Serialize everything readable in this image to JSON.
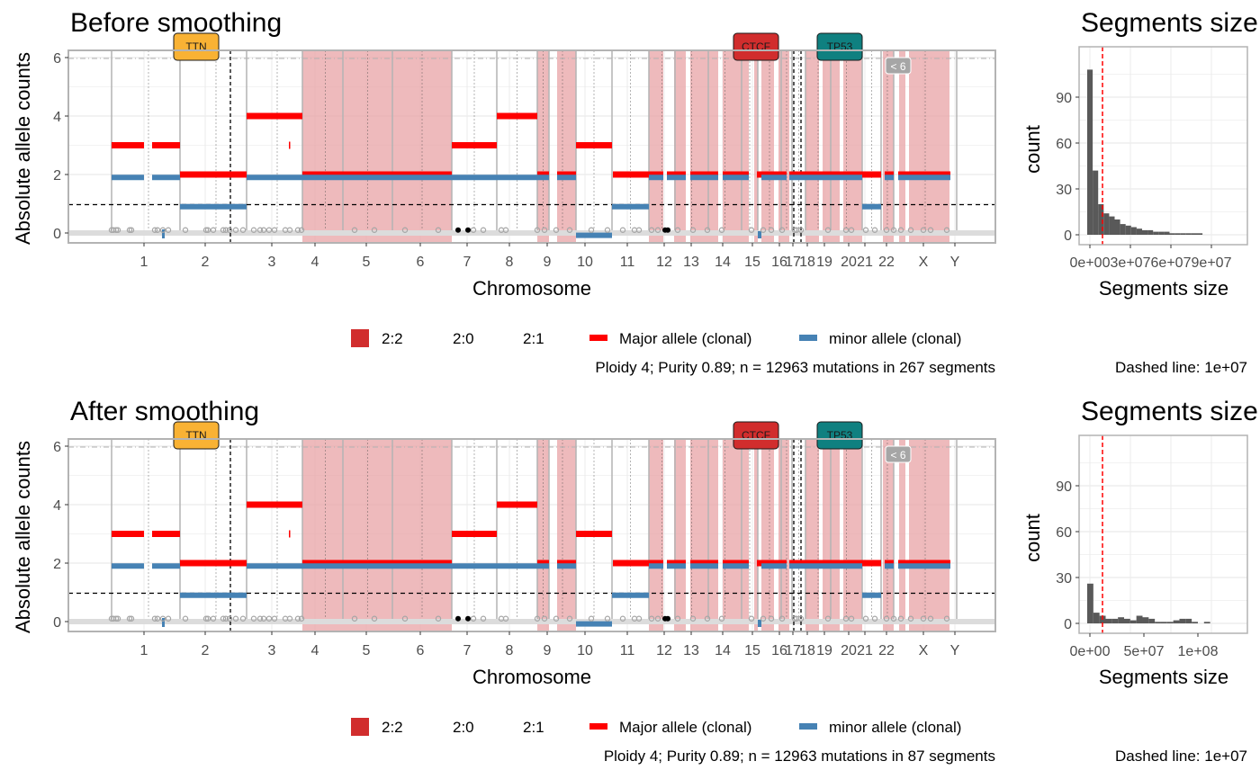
{
  "colors": {
    "major": "#ff0000",
    "minor": "#4682b4",
    "shade_2_2": "#e8a3a6",
    "legend_2_2": "#d12d2d",
    "ttn": "#f9b234",
    "ctcf": "#d12d2d",
    "tp53": "#0f8080",
    "hist_bar": "#595959",
    "hist_line": "#ff0000"
  },
  "legend": {
    "item_2_2": "2:2",
    "item_2_0": "2:0",
    "item_2_1": "2:1",
    "major": "Major allele (clonal)",
    "minor": "minor allele (clonal)"
  },
  "shared": {
    "ylabel": "Absolute allele counts",
    "xlabel": "Chromosome",
    "y_ticks": [
      "0",
      "2",
      "4",
      "6"
    ],
    "chromosomes": [
      "1",
      "2",
      "3",
      "4",
      "5",
      "6",
      "7",
      "8",
      "9",
      "10",
      "11",
      "12",
      "13",
      "14",
      "15",
      "16",
      "17",
      "18",
      "19",
      "20",
      "21",
      "22",
      "X",
      "Y"
    ],
    "genes": [
      "TTN",
      "CTCF",
      "TP53"
    ],
    "badge": "< 6",
    "hist_title": "Segments size",
    "hist_xlabel": "Segments size",
    "hist_ylabel": "count",
    "hist_y_ticks": [
      "0",
      "30",
      "60",
      "90"
    ],
    "dashed_caption": "Dashed line: 1e+07"
  },
  "panels": [
    {
      "title": "Before smoothing",
      "caption": "Ploidy 4; Purity  0.89; n = 12963 mutations in 267 segments",
      "hist_x_ticks": [
        "0e+00",
        "3e+07",
        "6e+07",
        "9e+07"
      ],
      "hist_counts": [
        108,
        42,
        20,
        14,
        12,
        10,
        7,
        6,
        5,
        4,
        3,
        3,
        2,
        2,
        2,
        1,
        1,
        1,
        1,
        1,
        1
      ]
    },
    {
      "title": "After smoothing",
      "caption": "Ploidy 4; Purity  0.89; n = 12963 mutations in 87 segments",
      "hist_x_ticks": [
        "0e+00",
        "5e+07",
        "1e+08"
      ],
      "hist_counts": [
        26,
        7,
        5,
        3,
        3,
        4,
        3,
        2,
        5,
        4,
        3,
        1,
        1,
        1,
        2,
        3,
        3,
        1,
        0,
        1
      ]
    }
  ],
  "chart_data": [
    {
      "type": "area",
      "title": "Before smoothing",
      "xlabel": "Chromosome",
      "ylabel": "Absolute allele counts",
      "ylim": [
        0,
        6
      ],
      "shaded_chromosomes_2_2": [
        "4",
        "5",
        "6",
        "9",
        "12",
        "13",
        "14",
        "15",
        "16",
        "17",
        "18",
        "19",
        "21",
        "22",
        "X",
        "Y"
      ],
      "major_allele_by_chromosome": [
        3,
        2,
        4,
        2,
        2,
        2,
        3,
        4,
        2,
        3,
        2,
        2,
        2,
        2,
        2,
        2,
        2,
        2,
        2,
        2,
        2,
        2,
        2,
        2
      ],
      "minor_allele_by_chromosome": [
        2,
        1,
        2,
        2,
        2,
        2,
        2,
        2,
        2,
        0,
        1,
        2,
        2,
        2,
        2,
        2,
        2,
        2,
        2,
        1,
        2,
        2,
        2,
        2
      ],
      "genes": [
        "TTN",
        "CTCF",
        "TP53"
      ]
    },
    {
      "type": "bar",
      "title": "Segments size",
      "xlabel": "Segments size",
      "ylabel": "count",
      "ylim": [
        0,
        110
      ],
      "dashed_line": 10000000,
      "x_ticks": [
        "0e+00",
        "3e+07",
        "6e+07",
        "9e+07"
      ],
      "values": [
        108,
        42,
        20,
        14,
        12,
        10,
        7,
        6,
        5,
        4,
        3,
        3,
        2,
        2,
        2,
        1,
        1,
        1,
        1,
        1,
        1
      ]
    },
    {
      "type": "area",
      "title": "After smoothing",
      "xlabel": "Chromosome",
      "ylabel": "Absolute allele counts",
      "ylim": [
        0,
        6
      ],
      "shaded_chromosomes_2_2": [
        "4",
        "5",
        "6",
        "9",
        "12",
        "13",
        "14",
        "15",
        "16",
        "17",
        "18",
        "19",
        "21",
        "22",
        "X",
        "Y"
      ],
      "major_allele_by_chromosome": [
        3,
        2,
        4,
        2,
        2,
        2,
        3,
        4,
        2,
        3,
        2,
        2,
        2,
        2,
        2,
        2,
        2,
        2,
        2,
        2,
        2,
        2,
        2,
        2
      ],
      "minor_allele_by_chromosome": [
        2,
        1,
        2,
        2,
        2,
        2,
        2,
        2,
        2,
        0,
        1,
        2,
        2,
        2,
        2,
        2,
        2,
        2,
        2,
        1,
        2,
        2,
        2,
        2
      ],
      "genes": [
        "TTN",
        "CTCF",
        "TP53"
      ]
    },
    {
      "type": "bar",
      "title": "Segments size",
      "xlabel": "Segments size",
      "ylabel": "count",
      "ylim": [
        0,
        110
      ],
      "dashed_line": 10000000,
      "x_ticks": [
        "0e+00",
        "5e+07",
        "1e+08"
      ],
      "values": [
        26,
        7,
        5,
        3,
        3,
        4,
        3,
        2,
        5,
        4,
        3,
        1,
        1,
        1,
        2,
        3,
        3,
        1,
        0,
        1
      ]
    }
  ]
}
